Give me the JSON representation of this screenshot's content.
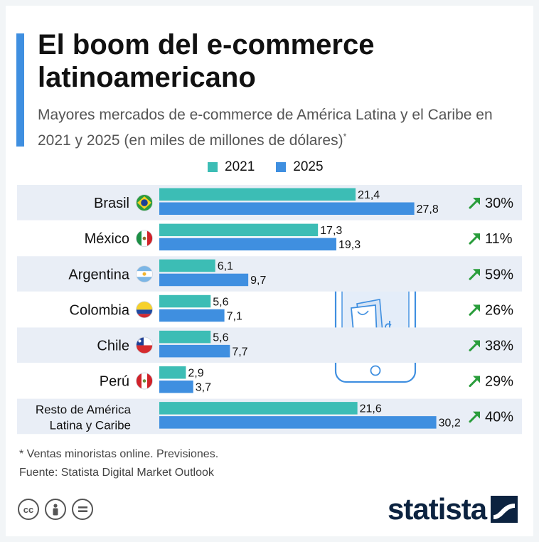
{
  "header": {
    "title": "El boom del e-commerce latinoamericano",
    "subtitle": "Mayores mercados de e-commerce de América Latina y el Caribe en 2021 y 2025 (en miles de millones de dólares)",
    "subtitle_mark": "*"
  },
  "legend": {
    "items": [
      {
        "label": "2021",
        "color": "#3cbdb5"
      },
      {
        "label": "2025",
        "color": "#3f8fe0"
      }
    ]
  },
  "chart_data": {
    "type": "bar",
    "orientation": "horizontal",
    "categories": [
      "Brasil",
      "México",
      "Argentina",
      "Colombia",
      "Chile",
      "Perú",
      "Resto de América Latina y Caribe"
    ],
    "category_lines": [
      [
        "Brasil"
      ],
      [
        "México"
      ],
      [
        "Argentina"
      ],
      [
        "Colombia"
      ],
      [
        "Chile"
      ],
      [
        "Perú"
      ],
      [
        "Resto de América",
        "Latina y Caribe"
      ]
    ],
    "series": [
      {
        "name": "2021",
        "color": "#3cbdb5",
        "values": [
          21.4,
          17.3,
          6.1,
          5.6,
          5.6,
          2.9,
          21.6
        ],
        "labels": [
          "21,4",
          "17,3",
          "6,1",
          "5,6",
          "5,6",
          "2,9",
          "21,6"
        ]
      },
      {
        "name": "2025",
        "color": "#3f8fe0",
        "values": [
          27.8,
          19.3,
          9.7,
          7.1,
          7.7,
          3.7,
          30.2
        ],
        "labels": [
          "27,8",
          "19,3",
          "9,7",
          "7,1",
          "7,7",
          "3,7",
          "30,2"
        ]
      }
    ],
    "growth": [
      "30%",
      "11%",
      "59%",
      "26%",
      "38%",
      "29%",
      "40%"
    ],
    "growth_color": "#2a9d3c",
    "flags": [
      "brazil-flag-icon",
      "mexico-flag-icon",
      "argentina-flag-icon",
      "colombia-flag-icon",
      "chile-flag-icon",
      "peru-flag-icon",
      null
    ],
    "xlim": [
      0,
      32
    ],
    "grid": false,
    "legend_position": "top"
  },
  "footer": {
    "note": "* Ventas minoristas online. Previsiones.",
    "source": "Fuente: Statista Digital Market Outlook",
    "brand": "statista",
    "license_icons": [
      "cc-icon",
      "by-icon",
      "nd-icon"
    ]
  },
  "illustration": {
    "icon": "smartphone-shopping-bag-icon"
  },
  "colors": {
    "accent": "#3f8fe0",
    "row_stripe": "#e9eef6",
    "growth_arrow": "#2a9d3c",
    "brand_navy": "#0c2340"
  }
}
